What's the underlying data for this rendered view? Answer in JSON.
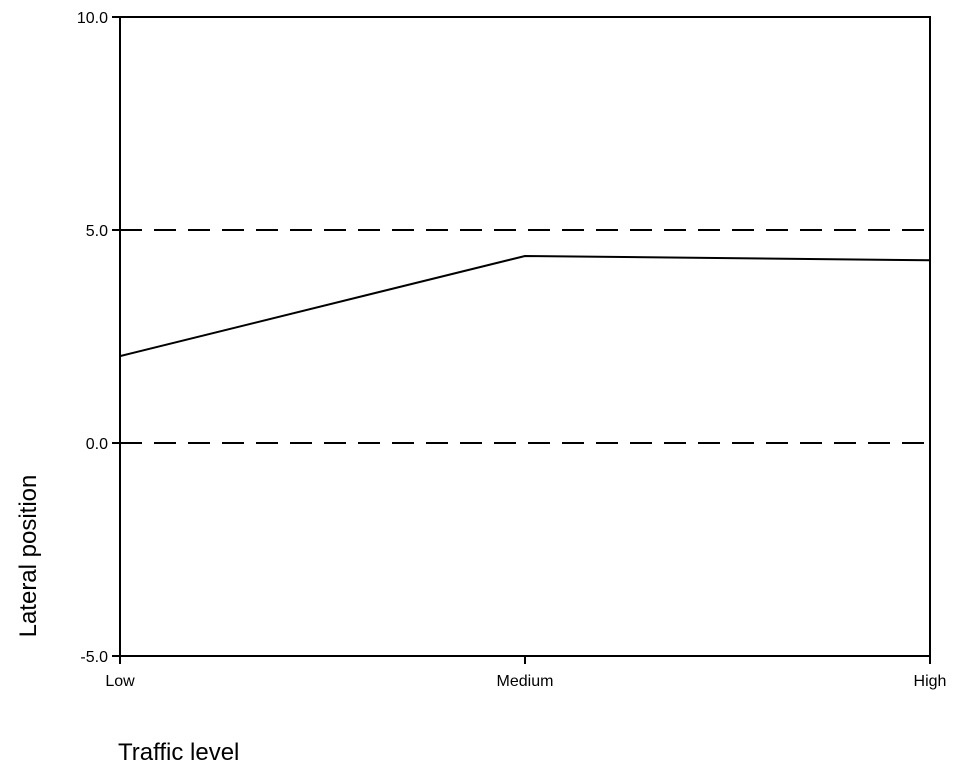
{
  "chart_data": {
    "type": "line",
    "title": "",
    "xlabel": "Traffic level",
    "ylabel": "Lateral position",
    "categories": [
      "Low",
      "Medium",
      "High"
    ],
    "series": [
      {
        "values": [
          2.04,
          4.39,
          4.29
        ]
      }
    ],
    "ylim": [
      -5.0,
      10.0
    ],
    "yticks": [
      -5.0,
      0.0,
      5.0,
      10.0
    ],
    "ytick_labels": [
      "-5.0",
      "0.0",
      "5.0",
      "10.0"
    ],
    "reference_lines": [
      0.0,
      5.0
    ],
    "reference_line_style": "dashed",
    "grid": false,
    "legend": "none",
    "colors": {
      "line": "#000000",
      "axis": "#000000",
      "background": "#ffffff"
    }
  }
}
